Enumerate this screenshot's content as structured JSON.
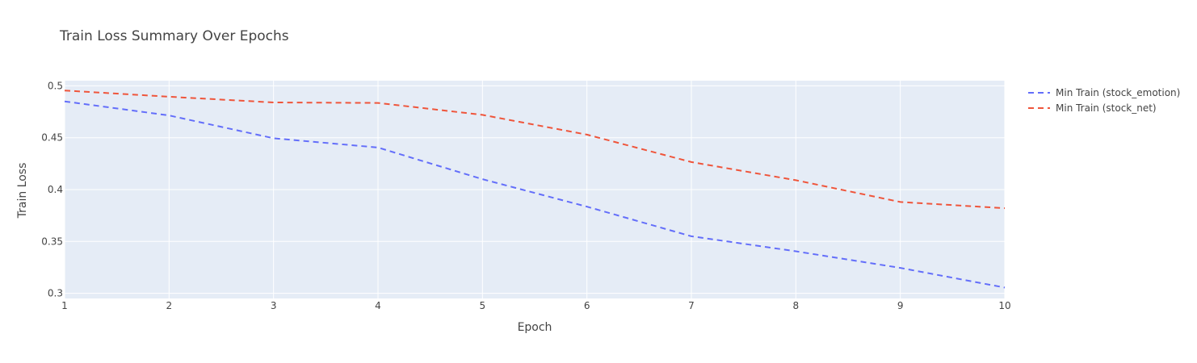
{
  "chart_data": {
    "type": "line",
    "title": "Train Loss Summary Over Epochs",
    "xlabel": "Epoch",
    "ylabel": "Train Loss",
    "xlim": [
      1,
      10
    ],
    "ylim": [
      0.295,
      0.505
    ],
    "x_ticks": [
      1,
      2,
      3,
      4,
      5,
      6,
      7,
      8,
      9,
      10
    ],
    "y_ticks": [
      0.3,
      0.35,
      0.4,
      0.45,
      0.5
    ],
    "y_tick_labels": [
      "0.3",
      "0.35",
      "0.4",
      "0.45",
      "0.5"
    ],
    "grid": true,
    "legend_position": "top-right outside plot",
    "x": [
      1,
      2,
      3,
      4,
      5,
      6,
      7,
      8,
      9,
      10
    ],
    "series": [
      {
        "name": "Min Train (stock_emotion)",
        "color": "#636efa",
        "dash": "dash",
        "values": [
          0.485,
          0.4715,
          0.4495,
          0.4405,
          0.41,
          0.3835,
          0.355,
          0.3405,
          0.3245,
          0.3055
        ]
      },
      {
        "name": "Min Train (stock_net)",
        "color": "#ef553b",
        "dash": "dash",
        "values": [
          0.4955,
          0.4895,
          0.484,
          0.4835,
          0.472,
          0.453,
          0.4265,
          0.409,
          0.388,
          0.382
        ]
      }
    ],
    "plot_background": "#e5ecf6",
    "grid_color": "#ffffff"
  }
}
